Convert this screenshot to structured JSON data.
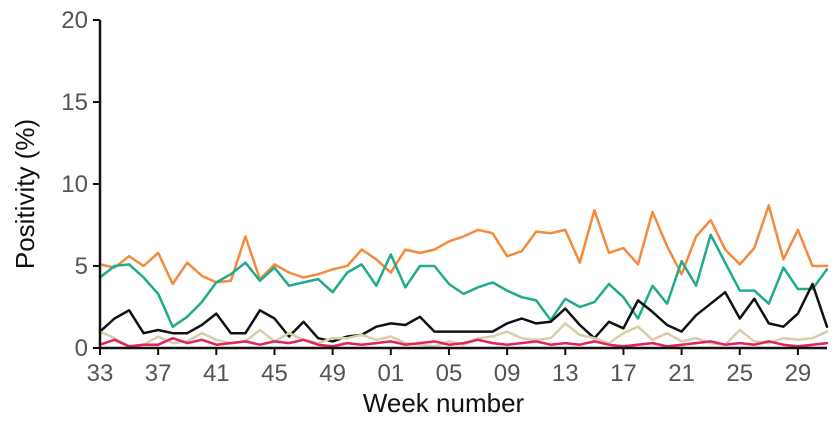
{
  "chart_data": {
    "type": "line",
    "xlabel": "Week number",
    "ylabel": "Positivity (%)",
    "ylim": [
      0,
      20
    ],
    "yticks": [
      0,
      5,
      10,
      15,
      20
    ],
    "xtick_labels": [
      "33",
      "37",
      "41",
      "45",
      "49",
      "01",
      "05",
      "09",
      "13",
      "17",
      "21",
      "25",
      "29"
    ],
    "x": [
      "33",
      "34",
      "35",
      "36",
      "37",
      "38",
      "39",
      "40",
      "41",
      "42",
      "43",
      "44",
      "45",
      "46",
      "47",
      "48",
      "49",
      "50",
      "51",
      "52",
      "01",
      "02",
      "03",
      "04",
      "05",
      "06",
      "07",
      "08",
      "09",
      "10",
      "11",
      "12",
      "13",
      "14",
      "15",
      "16",
      "17",
      "18",
      "19",
      "20",
      "21",
      "22",
      "23",
      "24",
      "25",
      "26",
      "27",
      "28",
      "29",
      "30",
      "31"
    ],
    "grid": false,
    "legend": "none",
    "series": [
      {
        "color": "#f58a3c",
        "values": [
          5.1,
          4.9,
          5.6,
          5.0,
          5.8,
          3.9,
          5.2,
          4.4,
          4.0,
          4.1,
          6.8,
          4.2,
          5.1,
          4.6,
          4.3,
          4.5,
          4.8,
          5.0,
          6.0,
          5.4,
          4.6,
          6.0,
          5.8,
          6.0,
          6.5,
          6.8,
          7.2,
          7.0,
          5.6,
          5.9,
          7.1,
          7.0,
          7.2,
          5.2,
          8.4,
          5.8,
          6.1,
          5.1,
          8.3,
          6.2,
          4.5,
          6.8,
          7.8,
          6.0,
          5.1,
          6.1,
          8.7,
          5.4,
          7.2,
          5.0,
          5.0
        ]
      },
      {
        "color": "#1fab8c",
        "values": [
          4.3,
          5.0,
          5.1,
          4.3,
          3.3,
          1.3,
          1.9,
          2.8,
          4.0,
          4.5,
          5.2,
          4.1,
          4.9,
          3.8,
          4.0,
          4.2,
          3.4,
          4.6,
          5.1,
          3.8,
          5.7,
          3.7,
          5.0,
          5.0,
          3.9,
          3.3,
          3.7,
          4.0,
          3.5,
          3.1,
          2.9,
          1.7,
          3.0,
          2.5,
          2.8,
          3.9,
          3.1,
          1.8,
          3.8,
          2.7,
          5.3,
          3.8,
          6.9,
          5.2,
          3.5,
          3.5,
          2.7,
          4.9,
          3.6,
          3.6,
          4.8
        ]
      },
      {
        "color": "#111111",
        "values": [
          1.0,
          1.8,
          2.3,
          0.9,
          1.1,
          0.9,
          0.9,
          1.4,
          2.1,
          0.9,
          0.9,
          2.3,
          1.8,
          0.7,
          1.6,
          0.6,
          0.4,
          0.7,
          0.8,
          1.3,
          1.5,
          1.4,
          1.9,
          1.0,
          1.0,
          1.0,
          1.0,
          1.0,
          1.5,
          1.8,
          1.5,
          1.6,
          2.4,
          1.4,
          0.6,
          1.6,
          1.2,
          2.9,
          2.2,
          1.4,
          1.0,
          2.0,
          2.7,
          3.4,
          1.8,
          3.0,
          1.5,
          1.3,
          2.1,
          3.9,
          1.3
        ]
      },
      {
        "color": "#d8ceaa",
        "values": [
          1.0,
          0.6,
          0.1,
          0.2,
          0.7,
          0.3,
          0.4,
          0.9,
          0.5,
          0.3,
          0.4,
          1.1,
          0.4,
          0.9,
          0.5,
          0.3,
          0.6,
          0.6,
          0.8,
          0.5,
          0.7,
          0.3,
          0.2,
          0.1,
          0.4,
          0.2,
          0.6,
          0.7,
          1.0,
          0.6,
          0.5,
          0.6,
          1.5,
          0.8,
          0.6,
          0.3,
          0.9,
          1.3,
          0.5,
          0.9,
          0.4,
          0.6,
          0.3,
          0.2,
          1.1,
          0.4,
          0.3,
          0.6,
          0.5,
          0.6,
          1.0
        ]
      },
      {
        "color": "#e0245e",
        "values": [
          0.2,
          0.5,
          0.1,
          0.2,
          0.2,
          0.6,
          0.3,
          0.5,
          0.2,
          0.3,
          0.4,
          0.2,
          0.4,
          0.3,
          0.5,
          0.2,
          0.1,
          0.3,
          0.2,
          0.3,
          0.4,
          0.2,
          0.3,
          0.4,
          0.2,
          0.3,
          0.5,
          0.3,
          0.2,
          0.3,
          0.4,
          0.2,
          0.3,
          0.2,
          0.4,
          0.2,
          0.1,
          0.2,
          0.3,
          0.1,
          0.2,
          0.3,
          0.4,
          0.2,
          0.3,
          0.2,
          0.4,
          0.2,
          0.1,
          0.2,
          0.3
        ]
      }
    ]
  }
}
